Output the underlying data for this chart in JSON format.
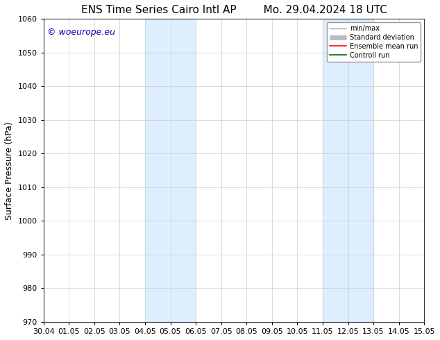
{
  "title_left": "ENS Time Series Cairo Intl AP",
  "title_right": "Mo. 29.04.2024 18 UTC",
  "ylabel": "Surface Pressure (hPa)",
  "ylim": [
    970,
    1060
  ],
  "yticks": [
    970,
    980,
    990,
    1000,
    1010,
    1020,
    1030,
    1040,
    1050,
    1060
  ],
  "x_labels": [
    "30.04",
    "01.05",
    "02.05",
    "03.05",
    "04.05",
    "05.05",
    "06.05",
    "07.05",
    "08.05",
    "09.05",
    "10.05",
    "11.05",
    "12.05",
    "13.05",
    "14.05",
    "15.05"
  ],
  "x_values": [
    0,
    1,
    2,
    3,
    4,
    5,
    6,
    7,
    8,
    9,
    10,
    11,
    12,
    13,
    14,
    15
  ],
  "shaded_regions": [
    {
      "xmin": 4,
      "xmax": 6,
      "color": "#ddeeff"
    },
    {
      "xmin": 11,
      "xmax": 13,
      "color": "#ddeeff"
    }
  ],
  "watermark": "© woeurope.eu",
  "watermark_color": "#0000bb",
  "background_color": "#ffffff",
  "plot_bg_color": "#ffffff",
  "grid_color": "#cccccc",
  "title_fontsize": 11,
  "label_fontsize": 9,
  "tick_fontsize": 8,
  "legend_entries": [
    {
      "label": "min/max",
      "color": "#aaaaaa",
      "linewidth": 1.0,
      "linestyle": "-"
    },
    {
      "label": "Standard deviation",
      "color": "#bbbbbb",
      "linewidth": 5,
      "linestyle": "-"
    },
    {
      "label": "Ensemble mean run",
      "color": "#ff0000",
      "linewidth": 1.2,
      "linestyle": "-"
    },
    {
      "label": "Controll run",
      "color": "#006600",
      "linewidth": 1.2,
      "linestyle": "-"
    }
  ]
}
